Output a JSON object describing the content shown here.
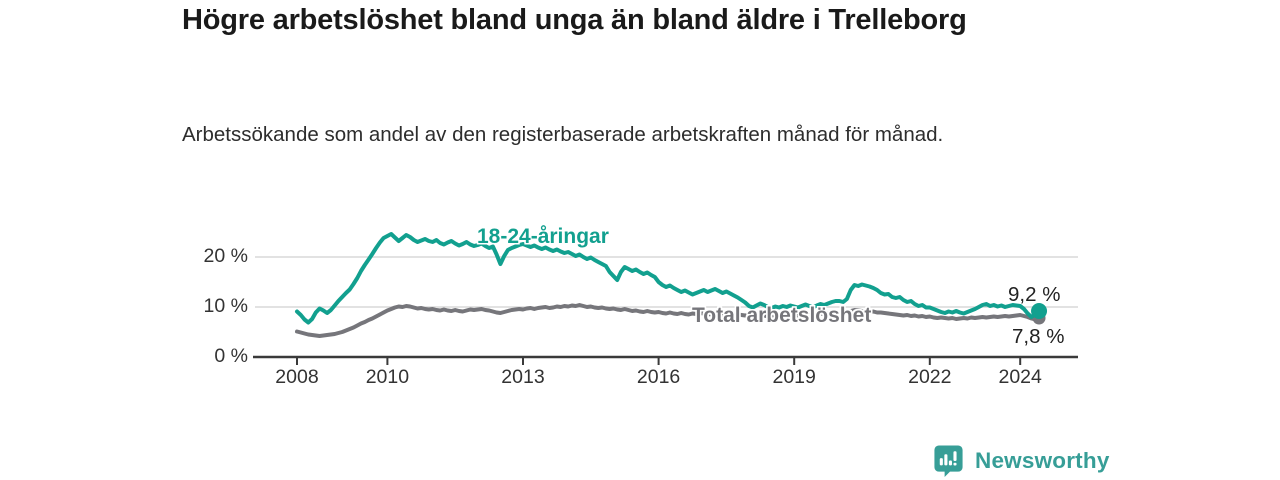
{
  "header": {
    "title": "Högre arbetslöshet bland unga än bland äldre i Trelleborg",
    "subtitle": "Arbetssökande som andel av den registerbaserade arbetskraften månad för månad."
  },
  "chart_data": {
    "type": "line",
    "x_start": "2008-01",
    "x_end": "2024-06",
    "x_resolution": "monthly",
    "unit": "%",
    "ylim": [
      0,
      26
    ],
    "grid": "horizontal",
    "yticks": [
      {
        "label": "0 %",
        "value": 0
      },
      {
        "label": "10 %",
        "value": 10
      },
      {
        "label": "20 %",
        "value": 20
      }
    ],
    "xticks": [
      {
        "label": "2008",
        "year": 2008
      },
      {
        "label": "2010",
        "year": 2010
      },
      {
        "label": "2013",
        "year": 2013
      },
      {
        "label": "2016",
        "year": 2016
      },
      {
        "label": "2019",
        "year": 2019
      },
      {
        "label": "2022",
        "year": 2022
      },
      {
        "label": "2024",
        "year": 2024
      }
    ],
    "series": [
      {
        "name": "18-24-åringar",
        "color": "#12a08f",
        "end_label": "9,2 %",
        "end_value": 9.2,
        "values": [
          9.1,
          8.4,
          7.5,
          6.9,
          7.6,
          8.9,
          9.7,
          9.3,
          8.8,
          9.4,
          10.3,
          11.2,
          12.0,
          12.8,
          13.5,
          14.6,
          15.8,
          17.2,
          18.4,
          19.5,
          20.6,
          21.8,
          22.9,
          23.8,
          24.2,
          24.6,
          23.9,
          23.2,
          23.8,
          24.4,
          24.0,
          23.4,
          23.0,
          23.3,
          23.6,
          23.2,
          23.0,
          23.4,
          22.8,
          22.5,
          22.9,
          23.2,
          22.7,
          22.3,
          22.6,
          23.0,
          22.5,
          22.2,
          22.4,
          22.7,
          22.2,
          21.8,
          22.1,
          20.5,
          18.6,
          20.2,
          21.4,
          21.8,
          22.1,
          22.4,
          22.6,
          22.3,
          22.0,
          22.3,
          21.9,
          21.6,
          21.9,
          21.5,
          21.2,
          21.5,
          21.1,
          20.8,
          21.0,
          20.6,
          20.2,
          20.5,
          20.0,
          19.6,
          19.9,
          19.4,
          19.0,
          18.6,
          18.2,
          17.0,
          16.2,
          15.4,
          17.0,
          18.0,
          17.6,
          17.2,
          17.5,
          17.0,
          16.6,
          16.9,
          16.4,
          16.0,
          15.0,
          14.4,
          14.0,
          14.3,
          13.8,
          13.4,
          13.0,
          13.3,
          12.9,
          12.5,
          12.8,
          13.1,
          13.4,
          13.0,
          13.3,
          13.6,
          13.2,
          12.8,
          13.1,
          12.7,
          12.3,
          11.9,
          11.4,
          10.9,
          10.2,
          9.9,
          10.3,
          10.7,
          10.4,
          10.0,
          9.8,
          10.1,
          9.9,
          10.2,
          10.0,
          10.3,
          10.1,
          9.9,
          10.2,
          10.5,
          10.2,
          9.9,
          10.3,
          10.6,
          10.4,
          10.7,
          11.0,
          11.2,
          11.2,
          11.0,
          11.6,
          13.4,
          14.4,
          14.2,
          14.5,
          14.3,
          14.1,
          13.8,
          13.4,
          12.8,
          12.5,
          12.6,
          12.0,
          11.8,
          12.0,
          11.4,
          11.0,
          11.2,
          10.6,
          10.2,
          10.4,
          9.9,
          9.9,
          9.6,
          9.3,
          9.0,
          8.8,
          9.1,
          8.9,
          9.2,
          8.9,
          8.7,
          9.0,
          9.3,
          9.6,
          10.0,
          10.4,
          10.6,
          10.2,
          10.4,
          10.1,
          10.3,
          10.0,
          10.2,
          10.4,
          10.3,
          10.2,
          9.6,
          8.7,
          8.0,
          8.5,
          9.2
        ]
      },
      {
        "name": "Total arbetslöshet",
        "color": "#76767b",
        "end_label": "7,8 %",
        "end_value": 7.8,
        "values": [
          5.1,
          4.9,
          4.7,
          4.5,
          4.4,
          4.3,
          4.2,
          4.3,
          4.4,
          4.5,
          4.6,
          4.8,
          5.0,
          5.3,
          5.6,
          5.9,
          6.3,
          6.7,
          7.0,
          7.4,
          7.7,
          8.1,
          8.5,
          8.9,
          9.3,
          9.6,
          9.9,
          10.1,
          10.0,
          10.2,
          10.1,
          9.9,
          9.7,
          9.8,
          9.6,
          9.5,
          9.6,
          9.4,
          9.3,
          9.5,
          9.3,
          9.2,
          9.4,
          9.2,
          9.1,
          9.3,
          9.5,
          9.4,
          9.5,
          9.6,
          9.4,
          9.3,
          9.1,
          8.9,
          8.8,
          9.0,
          9.2,
          9.4,
          9.5,
          9.6,
          9.5,
          9.7,
          9.8,
          9.6,
          9.8,
          9.9,
          10.0,
          9.8,
          9.9,
          10.1,
          10.0,
          10.2,
          10.1,
          10.3,
          10.2,
          10.4,
          10.2,
          10.0,
          10.1,
          9.9,
          9.8,
          9.9,
          9.7,
          9.6,
          9.7,
          9.5,
          9.4,
          9.6,
          9.4,
          9.2,
          9.3,
          9.1,
          9.0,
          9.2,
          9.0,
          8.9,
          9.0,
          8.8,
          8.7,
          8.9,
          8.7,
          8.6,
          8.8,
          8.6,
          8.5,
          8.7,
          8.6,
          8.8,
          8.7,
          8.5,
          8.6,
          8.8,
          8.6,
          8.4,
          8.5,
          8.3,
          8.4,
          8.6,
          8.4,
          8.3,
          8.4,
          8.2,
          8.3,
          8.5,
          8.3,
          8.1,
          8.2,
          8.4,
          8.3,
          8.5,
          8.4,
          8.6,
          8.5,
          8.3,
          8.4,
          8.6,
          8.4,
          8.3,
          8.5,
          8.7,
          8.6,
          8.8,
          8.7,
          8.9,
          8.8,
          8.7,
          8.9,
          9.2,
          9.4,
          9.3,
          9.2,
          9.1,
          9.0,
          9.1,
          8.9,
          8.9,
          8.8,
          8.7,
          8.6,
          8.5,
          8.4,
          8.3,
          8.4,
          8.2,
          8.3,
          8.1,
          8.2,
          8.0,
          8.1,
          7.9,
          7.8,
          7.9,
          7.8,
          7.7,
          7.8,
          7.6,
          7.7,
          7.8,
          7.7,
          7.9,
          7.8,
          7.9,
          8.0,
          7.9,
          8.0,
          8.1,
          8.0,
          8.1,
          8.2,
          8.1,
          8.2,
          8.3,
          8.4,
          8.2,
          8.0,
          7.7,
          7.5,
          7.8
        ]
      }
    ],
    "colors": {
      "grid": "#d9d9d9",
      "axis": "#3a3a3a",
      "tick_text": "#333333"
    }
  },
  "footer": {
    "brand": "Newsworthy",
    "brand_color": "#379e97",
    "logo_icon": "bar-chart-speech-bubble"
  }
}
